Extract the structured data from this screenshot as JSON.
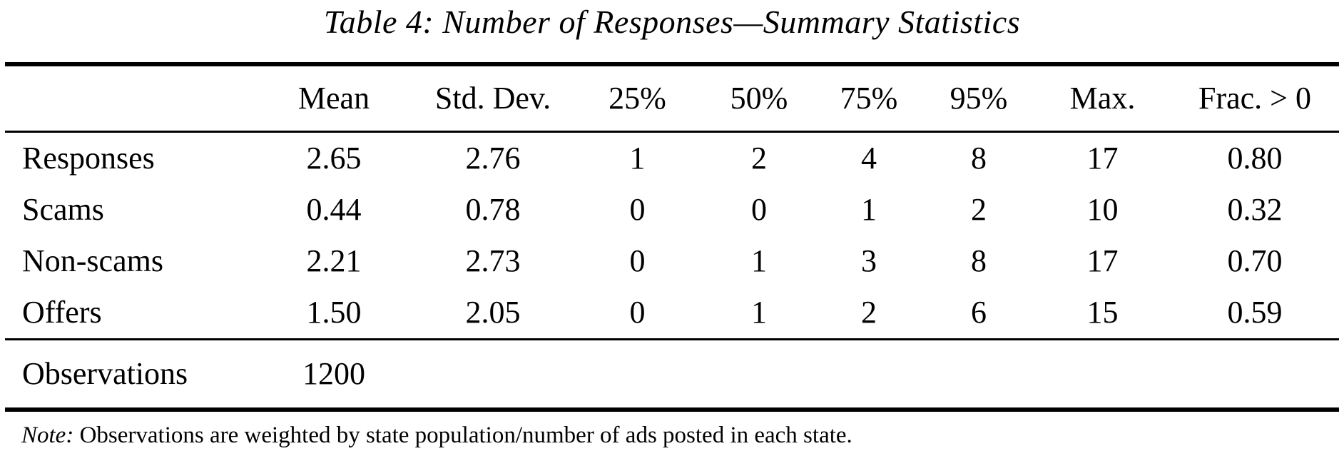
{
  "title": "Table 4: Number of Responses—Summary Statistics",
  "table": {
    "columns": [
      "",
      "Mean",
      "Std. Dev.",
      "25%",
      "50%",
      "75%",
      "95%",
      "Max.",
      "Frac. > 0"
    ],
    "rows": [
      {
        "label": "Responses",
        "values": [
          "2.65",
          "2.76",
          "1",
          "2",
          "4",
          "8",
          "17",
          "0.80"
        ]
      },
      {
        "label": "Scams",
        "values": [
          "0.44",
          "0.78",
          "0",
          "0",
          "1",
          "2",
          "10",
          "0.32"
        ]
      },
      {
        "label": "Non-scams",
        "values": [
          "2.21",
          "2.73",
          "0",
          "1",
          "3",
          "8",
          "17",
          "0.70"
        ]
      },
      {
        "label": "Offers",
        "values": [
          "1.50",
          "2.05",
          "0",
          "1",
          "2",
          "6",
          "15",
          "0.59"
        ]
      }
    ],
    "footer": {
      "label": "Observations",
      "value": "1200"
    }
  },
  "note": {
    "prefix": "Note:",
    "text": "Observations are weighted by state population/number of ads posted in each state."
  },
  "colors": {
    "text": "#000000",
    "background": "#ffffff",
    "rule": "#000000"
  }
}
